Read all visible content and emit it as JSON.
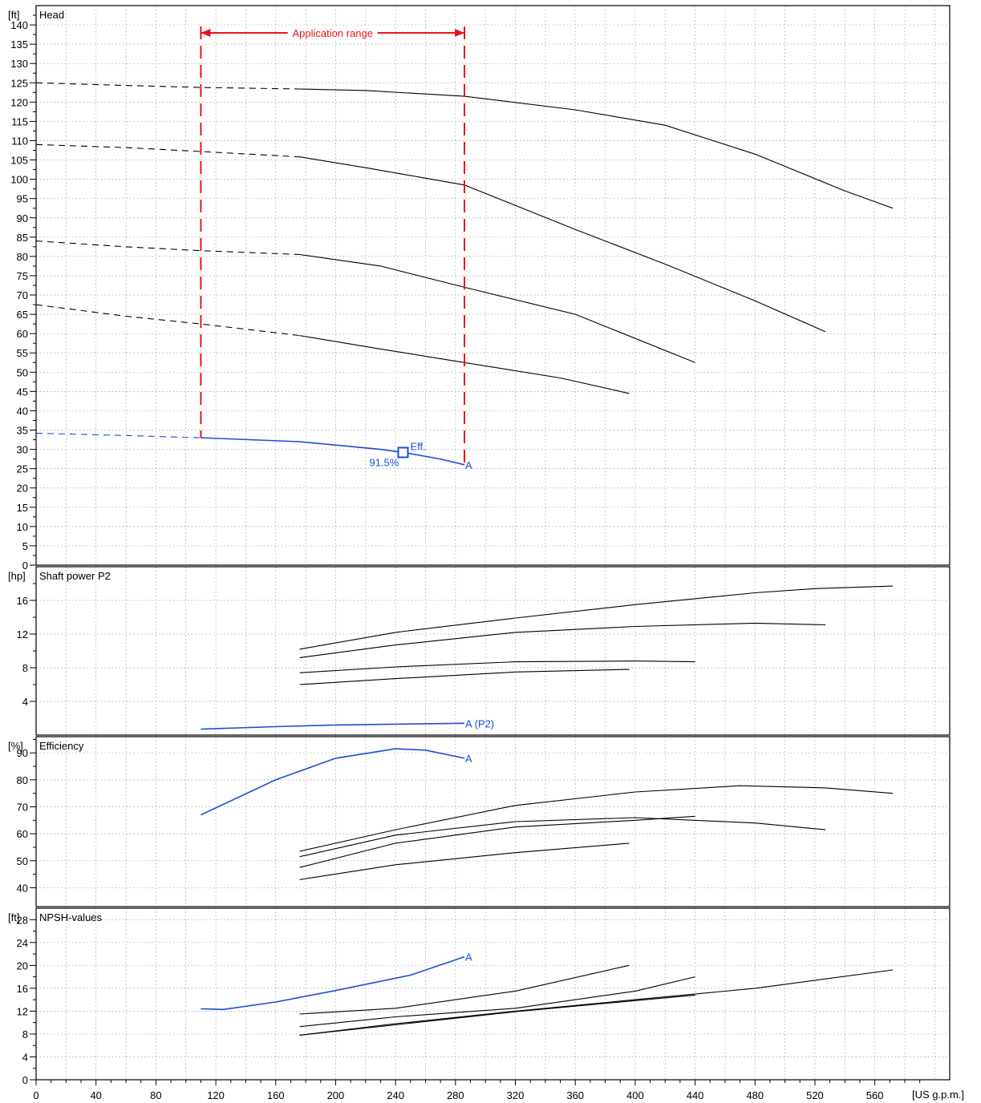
{
  "chart_data": {
    "type": "line",
    "x_axis": {
      "unit": "[US g.p.m.]",
      "range": [
        0,
        610
      ],
      "ticks": [
        0,
        40,
        80,
        120,
        160,
        200,
        240,
        280,
        320,
        360,
        400,
        440,
        480,
        520,
        560
      ],
      "minor_step": 10,
      "grid_step": 20
    },
    "panels": [
      {
        "id": "head",
        "title": "Head",
        "unit": "[ft]",
        "ylim": [
          0,
          145
        ],
        "ticks": [
          0,
          5,
          10,
          15,
          20,
          25,
          30,
          35,
          40,
          45,
          50,
          55,
          60,
          65,
          70,
          75,
          80,
          85,
          90,
          95,
          100,
          105,
          110,
          115,
          120,
          125,
          130,
          135,
          140
        ],
        "series": [
          {
            "color": "#000000",
            "dashed": [
              [
                0,
                125
              ],
              [
                60,
                124.3
              ],
              [
                110,
                123.8
              ],
              [
                176,
                123.4
              ]
            ],
            "values": [
              [
                176,
                123.4
              ],
              [
                220,
                123.0
              ],
              [
                286,
                121.5
              ],
              [
                360,
                118.0
              ],
              [
                420,
                114.0
              ],
              [
                480,
                106.5
              ],
              [
                540,
                97.0
              ],
              [
                572,
                92.5
              ]
            ]
          },
          {
            "color": "#000000",
            "dashed": [
              [
                0,
                109
              ],
              [
                60,
                108.2
              ],
              [
                110,
                107.2
              ],
              [
                176,
                105.8
              ]
            ],
            "values": [
              [
                176,
                105.8
              ],
              [
                220,
                103.0
              ],
              [
                286,
                98.5
              ],
              [
                360,
                87.0
              ],
              [
                420,
                78.0
              ],
              [
                480,
                68.5
              ],
              [
                527,
                60.5
              ]
            ]
          },
          {
            "color": "#000000",
            "dashed": [
              [
                0,
                84
              ],
              [
                60,
                82.5
              ],
              [
                110,
                81.5
              ],
              [
                176,
                80.5
              ]
            ],
            "values": [
              [
                176,
                80.5
              ],
              [
                230,
                77.5
              ],
              [
                286,
                72.0
              ],
              [
                360,
                65.0
              ],
              [
                440,
                52.5
              ]
            ]
          },
          {
            "color": "#000000",
            "dashed": [
              [
                0,
                67.5
              ],
              [
                60,
                64.5
              ],
              [
                110,
                62.5
              ],
              [
                176,
                59.5
              ]
            ],
            "values": [
              [
                176,
                59.5
              ],
              [
                230,
                56.0
              ],
              [
                286,
                52.5
              ],
              [
                350,
                48.5
              ],
              [
                396,
                44.5
              ]
            ]
          },
          {
            "name": "A",
            "color": "#1a4ed8",
            "dashed": [
              [
                0,
                34.2
              ],
              [
                60,
                33.6
              ],
              [
                110,
                33.0
              ]
            ],
            "values": [
              [
                110,
                33.0
              ],
              [
                176,
                32.0
              ],
              [
                230,
                30.0
              ],
              [
                245,
                29.2
              ],
              [
                270,
                27.5
              ],
              [
                286,
                26.0
              ]
            ]
          }
        ],
        "annotations": {
          "application_range_label": "Application range",
          "application_range": [
            110,
            286
          ],
          "eff_marker": [
            245,
            29.2
          ],
          "eff_label": "Eff.",
          "eff_value": "91.5%",
          "curve_label": "A"
        }
      },
      {
        "id": "power",
        "title": "Shaft power P2",
        "unit": "[hp]",
        "ylim": [
          0,
          20
        ],
        "ticks": [
          4,
          8,
          12,
          16
        ],
        "series": [
          {
            "color": "#000000",
            "values": [
              [
                176,
                10.2
              ],
              [
                240,
                12.2
              ],
              [
                320,
                13.9
              ],
              [
                400,
                15.5
              ],
              [
                480,
                16.9
              ],
              [
                520,
                17.4
              ],
              [
                572,
                17.7
              ]
            ]
          },
          {
            "color": "#000000",
            "values": [
              [
                176,
                9.2
              ],
              [
                240,
                10.7
              ],
              [
                320,
                12.2
              ],
              [
                400,
                12.9
              ],
              [
                480,
                13.3
              ],
              [
                527,
                13.1
              ]
            ]
          },
          {
            "color": "#000000",
            "values": [
              [
                176,
                7.4
              ],
              [
                240,
                8.1
              ],
              [
                320,
                8.7
              ],
              [
                400,
                8.8
              ],
              [
                440,
                8.7
              ]
            ]
          },
          {
            "color": "#000000",
            "values": [
              [
                176,
                6.0
              ],
              [
                240,
                6.7
              ],
              [
                320,
                7.5
              ],
              [
                396,
                7.8
              ]
            ]
          },
          {
            "name": "A (P2)",
            "color": "#1a4ed8",
            "values": [
              [
                110,
                0.7
              ],
              [
                160,
                1.0
              ],
              [
                200,
                1.2
              ],
              [
                286,
                1.4
              ]
            ]
          }
        ]
      },
      {
        "id": "efficiency",
        "title": "Efficiency",
        "unit": "[%]",
        "ylim": [
          33,
          96
        ],
        "ticks": [
          40,
          50,
          60,
          70,
          80,
          90
        ],
        "series": [
          {
            "color": "#000000",
            "values": [
              [
                176,
                53.5
              ],
              [
                240,
                61.5
              ],
              [
                320,
                70.5
              ],
              [
                400,
                75.5
              ],
              [
                470,
                77.8
              ],
              [
                527,
                77.0
              ],
              [
                572,
                75.0
              ]
            ]
          },
          {
            "color": "#000000",
            "values": [
              [
                176,
                51.5
              ],
              [
                240,
                59.5
              ],
              [
                320,
                64.5
              ],
              [
                400,
                66.0
              ],
              [
                480,
                64.0
              ],
              [
                527,
                61.5
              ]
            ]
          },
          {
            "color": "#000000",
            "values": [
              [
                176,
                47.5
              ],
              [
                240,
                56.5
              ],
              [
                320,
                62.5
              ],
              [
                400,
                65.0
              ],
              [
                440,
                66.5
              ]
            ]
          },
          {
            "color": "#000000",
            "values": [
              [
                176,
                43.0
              ],
              [
                240,
                48.5
              ],
              [
                320,
                53.0
              ],
              [
                396,
                56.5
              ]
            ]
          },
          {
            "name": "A",
            "color": "#1a4ed8",
            "values": [
              [
                110,
                67.0
              ],
              [
                160,
                80.0
              ],
              [
                200,
                88.0
              ],
              [
                240,
                91.5
              ],
              [
                260,
                91.0
              ],
              [
                286,
                88.0
              ]
            ]
          }
        ]
      },
      {
        "id": "npsh",
        "title": "NPSH-values",
        "unit": "[ft]",
        "ylim": [
          0,
          30
        ],
        "ticks": [
          0,
          4,
          8,
          12,
          16,
          20,
          24,
          28
        ],
        "series": [
          {
            "color": "#000000",
            "values": [
              [
                176,
                11.5
              ],
              [
                240,
                12.5
              ],
              [
                320,
                15.5
              ],
              [
                396,
                20.0
              ]
            ]
          },
          {
            "color": "#000000",
            "values": [
              [
                176,
                9.3
              ],
              [
                240,
                11.0
              ],
              [
                320,
                12.5
              ],
              [
                400,
                15.5
              ],
              [
                440,
                18.0
              ]
            ]
          },
          {
            "color": "#000000",
            "values": [
              [
                176,
                7.8
              ],
              [
                240,
                9.8
              ],
              [
                320,
                12.0
              ],
              [
                400,
                14.0
              ],
              [
                480,
                16.0
              ],
              [
                572,
                19.2
              ]
            ]
          },
          {
            "color": "#000000",
            "values": [
              [
                176,
                7.8
              ],
              [
                240,
                9.6
              ],
              [
                320,
                11.9
              ],
              [
                440,
                14.8
              ]
            ]
          },
          {
            "name": "A",
            "color": "#1a4ed8",
            "values": [
              [
                110,
                12.4
              ],
              [
                125,
                12.3
              ],
              [
                160,
                13.6
              ],
              [
                200,
                15.6
              ],
              [
                250,
                18.3
              ],
              [
                286,
                21.5
              ]
            ]
          }
        ]
      }
    ]
  }
}
